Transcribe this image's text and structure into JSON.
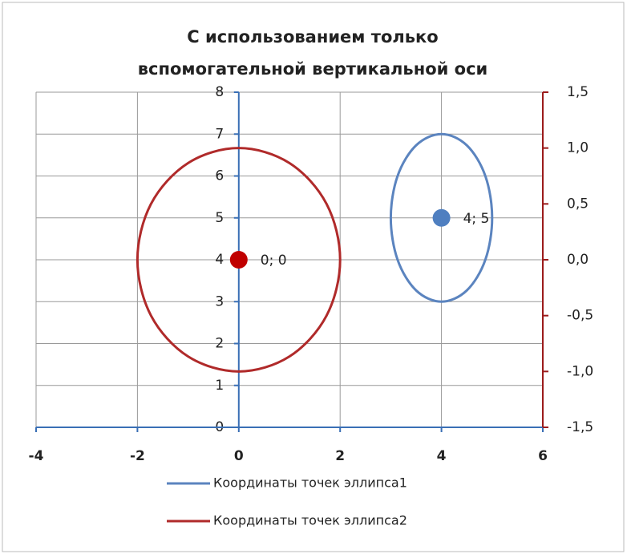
{
  "chart_data": {
    "type": "scatter",
    "title": [
      "С использованием только",
      "вспомогательной вертикальной оси"
    ],
    "xlim": [
      -4,
      6
    ],
    "xticks": [
      -4,
      -2,
      0,
      2,
      4,
      6
    ],
    "ylim": [
      0,
      8
    ],
    "yticks": [
      0,
      1,
      2,
      3,
      4,
      5,
      6,
      7,
      8
    ],
    "y2lim": [
      -1.5,
      1.5
    ],
    "y2ticks": [
      {
        "value": -1.5,
        "label": "-1,5"
      },
      {
        "value": -1,
        "label": "-1,0"
      },
      {
        "value": -0.5,
        "label": "-0,5"
      },
      {
        "value": 0,
        "label": "0,0"
      },
      {
        "value": 0.5,
        "label": "0,5"
      },
      {
        "value": 1,
        "label": "1,0"
      },
      {
        "value": 1.5,
        "label": "1,5"
      }
    ],
    "grid": true,
    "series": [
      {
        "name": "Координаты  точек эллипса1",
        "color": "#5b84bf",
        "axis": "y",
        "x": [
          5,
          4.866,
          4.5,
          4,
          3.5,
          3.134,
          3,
          3.134,
          3.5,
          4,
          4.5,
          4.866,
          5
        ],
        "values": [
          5,
          6,
          6.732,
          7,
          6.732,
          6,
          5,
          4,
          3.268,
          3,
          3.268,
          4,
          5
        ]
      },
      {
        "name": "Координаты  точек эллипса2",
        "color": "#b02a2a",
        "axis": "y2",
        "x": [
          2,
          1.732,
          1,
          0,
          -1,
          -1.732,
          -2,
          -1.732,
          -1,
          0,
          1,
          1.732,
          2
        ],
        "values": [
          0,
          0.5,
          0.866,
          1,
          0.866,
          0.5,
          0,
          -0.5,
          -0.866,
          -1,
          -0.866,
          -0.5,
          0
        ]
      }
    ],
    "points": [
      {
        "x": 4,
        "y": 5,
        "label": "4; 5",
        "color": "#4f7fc0",
        "axis": "y"
      },
      {
        "x": 0,
        "y": 0,
        "label": "0; 0",
        "color": "#c00000",
        "axis": "y2"
      }
    ]
  }
}
